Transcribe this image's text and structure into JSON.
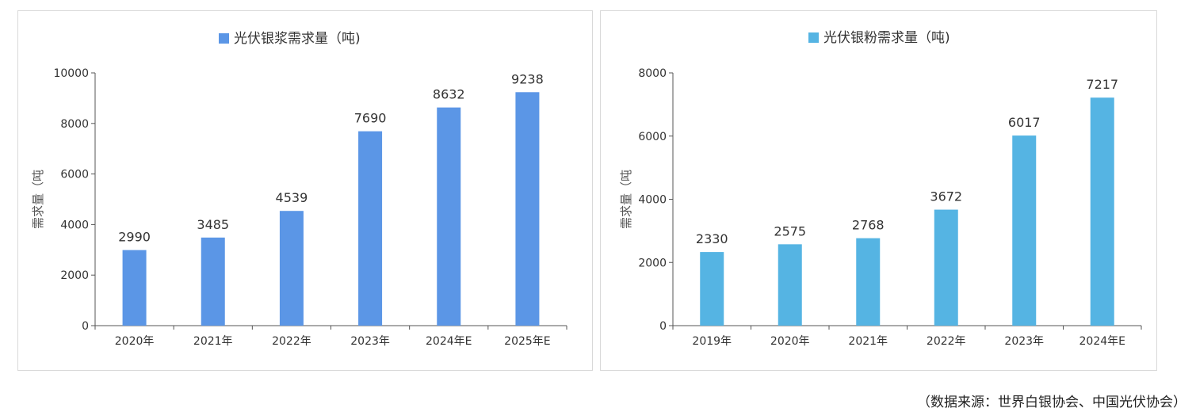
{
  "chart_data": [
    {
      "type": "bar",
      "legend": "光伏银浆需求量（吨)",
      "ylabel": "需求量（吨",
      "categories": [
        "2020年",
        "2021年",
        "2022年",
        "2023年",
        "2024年E",
        "2025年E"
      ],
      "values": [
        2990,
        3485,
        4539,
        7690,
        8632,
        9238
      ],
      "yticks": [
        "0",
        "2000",
        "4000",
        "6000",
        "8000",
        "10000"
      ],
      "ylim": [
        0,
        10000
      ],
      "color": "#5b96e6",
      "grid": false,
      "legend_position": "top-center"
    },
    {
      "type": "bar",
      "legend": "光伏银粉需求量（吨)",
      "ylabel": "需求量（吨",
      "categories": [
        "2019年",
        "2020年",
        "2021年",
        "2022年",
        "2023年",
        "2024年E"
      ],
      "values": [
        2330,
        2575,
        2768,
        3672,
        6017,
        7217
      ],
      "yticks": [
        "0",
        "2000",
        "4000",
        "6000",
        "8000"
      ],
      "ylim": [
        0,
        8000
      ],
      "color": "#55b4e3",
      "grid": false,
      "legend_position": "top-center"
    }
  ],
  "source_note": "（数据来源：世界白银协会、中国光伏协会）"
}
